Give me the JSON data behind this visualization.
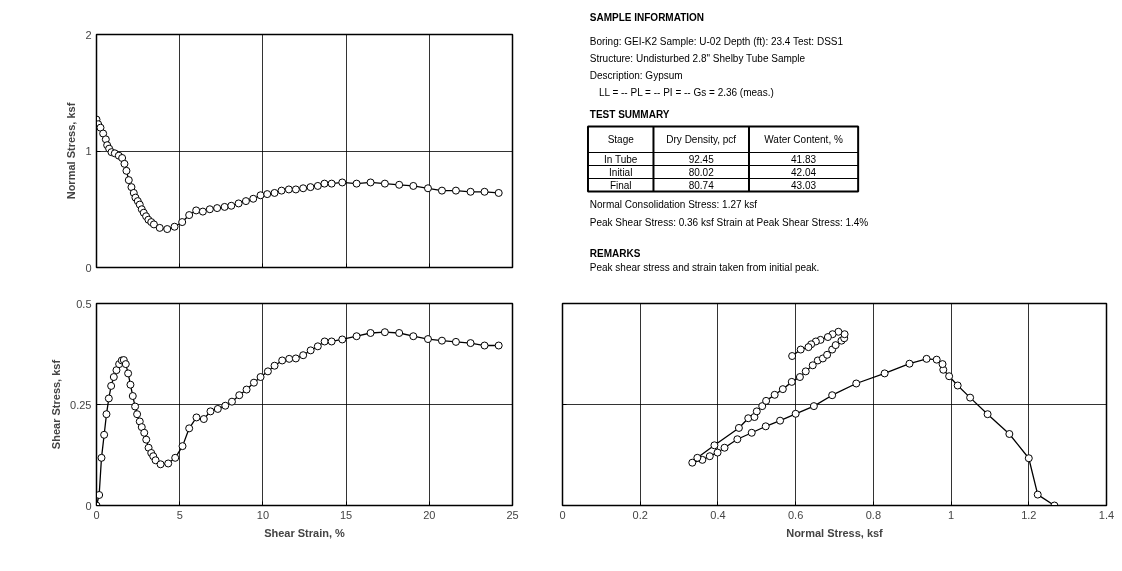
{
  "chart_data": [
    {
      "type": "line",
      "ylabel": "Normal Stress, ksf",
      "xlim": [
        0,
        25
      ],
      "xticks": [
        0,
        5,
        10,
        15,
        20,
        25
      ],
      "ylim": [
        0,
        2
      ],
      "yticks": [
        0,
        1,
        2
      ],
      "tick_labels": "y",
      "grid": true,
      "marker": "circle",
      "line_style": "solid",
      "series": [
        {
          "color": "#000000",
          "x": [
            0,
            0.1,
            0.24,
            0.4,
            0.56,
            0.64,
            0.76,
            0.9,
            1.1,
            1.34,
            1.54,
            1.68,
            1.8,
            1.94,
            2.1,
            2.24,
            2.34,
            2.48,
            2.6,
            2.72,
            2.84,
            2.98,
            3.12,
            3.29,
            3.45,
            3.8,
            4.25,
            4.69,
            5.15,
            5.57,
            5.99,
            6.39,
            6.81,
            7.25,
            7.7,
            8.1,
            8.54,
            8.98,
            9.42,
            9.86,
            10.26,
            10.7,
            11.12,
            11.56,
            11.98,
            12.42,
            12.86,
            13.3,
            13.7,
            14.13,
            14.77,
            15.63,
            16.47,
            17.33,
            18.19,
            19.04,
            19.92,
            20.76,
            21.6,
            22.48,
            23.32,
            24.17
          ],
          "values": [
            1.27,
            1.23,
            1.2,
            1.15,
            1.1,
            1.05,
            1.02,
            0.99,
            0.98,
            0.96,
            0.94,
            0.89,
            0.83,
            0.75,
            0.69,
            0.64,
            0.6,
            0.57,
            0.54,
            0.5,
            0.47,
            0.44,
            0.41,
            0.39,
            0.37,
            0.34,
            0.33,
            0.35,
            0.39,
            0.45,
            0.49,
            0.48,
            0.5,
            0.51,
            0.52,
            0.53,
            0.55,
            0.57,
            0.59,
            0.62,
            0.63,
            0.64,
            0.66,
            0.67,
            0.67,
            0.68,
            0.69,
            0.7,
            0.72,
            0.72,
            0.73,
            0.72,
            0.73,
            0.72,
            0.71,
            0.7,
            0.68,
            0.66,
            0.66,
            0.65,
            0.65,
            0.64
          ]
        }
      ]
    },
    {
      "type": "other",
      "title": "SAMPLE INFORMATION",
      "annotations": [
        "Boring: GEI-K2   Sample: U-02   Depth (ft): 23.4  Test: DSS1",
        "Structure: Undisturbed 2.8\" Shelby Tube Sample",
        "Description: Gypsum",
        "LL = --        PL = --        PI = --      Gs = 2.36  (meas.)",
        "TEST SUMMARY",
        "Normal Consolidation Stress: 1.27 ksf",
        "Peak Shear Stress: 0.36 ksf      Strain at Peak Shear Stress: 1.4%",
        "REMARKS",
        "Peak shear stress and strain taken from initial peak."
      ],
      "categories": [
        "Stage",
        "Dry Density, pcf",
        "Water Content, %"
      ],
      "y_categories": [
        "In Tube",
        "Initial",
        "Final"
      ],
      "cell_labels": [
        [
          "92.45",
          "41.83"
        ],
        [
          "80.02",
          "42.04"
        ],
        [
          "80.74",
          "43.03"
        ]
      ]
    },
    {
      "type": "line",
      "xlabel": "Shear Strain, %",
      "ylabel": "Shear Stress, ksf",
      "xlim": [
        0,
        25
      ],
      "xticks": [
        0,
        5,
        10,
        15,
        20,
        25
      ],
      "ylim": [
        0,
        0.5
      ],
      "yticks": [
        0,
        0.25,
        0.5
      ],
      "grid": true,
      "marker": "circle",
      "line_style": "solid",
      "series": [
        {
          "color": "#000000",
          "x": [
            0,
            0.16,
            0.3,
            0.46,
            0.6,
            0.74,
            0.88,
            1.04,
            1.2,
            1.36,
            1.52,
            1.64,
            1.76,
            1.9,
            2.04,
            2.18,
            2.32,
            2.44,
            2.6,
            2.72,
            2.87,
            2.99,
            3.13,
            3.29,
            3.41,
            3.55,
            3.85,
            4.31,
            4.73,
            5.17,
            5.57,
            6.01,
            6.45,
            6.85,
            7.29,
            7.74,
            8.14,
            8.58,
            9.02,
            9.46,
            9.86,
            10.3,
            10.7,
            11.16,
            11.58,
            11.98,
            12.42,
            12.87,
            13.3,
            13.71,
            14.13,
            14.77,
            15.63,
            16.47,
            17.33,
            18.19,
            19.04,
            19.92,
            20.76,
            21.6,
            22.48,
            23.32,
            24.17
          ],
          "values": [
            0,
            0.026,
            0.118,
            0.175,
            0.226,
            0.265,
            0.296,
            0.318,
            0.335,
            0.35,
            0.359,
            0.36,
            0.35,
            0.327,
            0.299,
            0.271,
            0.245,
            0.226,
            0.208,
            0.194,
            0.18,
            0.163,
            0.143,
            0.13,
            0.122,
            0.112,
            0.102,
            0.104,
            0.118,
            0.147,
            0.191,
            0.218,
            0.214,
            0.233,
            0.239,
            0.247,
            0.257,
            0.273,
            0.287,
            0.304,
            0.318,
            0.332,
            0.346,
            0.359,
            0.363,
            0.364,
            0.372,
            0.384,
            0.394,
            0.406,
            0.406,
            0.411,
            0.419,
            0.427,
            0.429,
            0.427,
            0.419,
            0.412,
            0.408,
            0.405,
            0.402,
            0.396,
            0.396
          ]
        }
      ]
    },
    {
      "type": "line",
      "xlabel": "Normal Stress, ksf",
      "xlim": [
        0,
        1.4
      ],
      "xticks": [
        0,
        0.2,
        0.4,
        0.6,
        0.8,
        1,
        1.2,
        1.4
      ],
      "ylim": [
        0,
        0.5
      ],
      "yticks": [
        0,
        0.25,
        0.5
      ],
      "tick_labels": "x",
      "grid": true,
      "marker": "circle",
      "line_style": "solid",
      "series": [
        {
          "color": "#000000",
          "x": [
            1.266,
            1.223,
            1.2,
            1.15,
            1.094,
            1.049,
            1.017,
            0.995,
            0.98,
            0.978,
            0.963,
            0.937,
            0.893,
            0.829,
            0.756,
            0.694,
            0.647,
            0.6,
            0.56,
            0.523,
            0.487,
            0.45,
            0.417,
            0.399,
            0.379,
            0.36,
            0.334,
            0.347,
            0.391,
            0.454,
            0.478,
            0.494,
            0.5,
            0.514,
            0.524,
            0.546,
            0.567,
            0.59,
            0.611,
            0.626,
            0.644,
            0.657,
            0.67,
            0.681,
            0.694,
            0.703,
            0.718,
            0.725,
            0.726,
            0.71,
            0.695,
            0.683,
            0.664,
            0.652,
            0.64,
            0.633,
            0.613,
            0.591
          ],
          "values": [
            0,
            0.027,
            0.117,
            0.177,
            0.226,
            0.267,
            0.297,
            0.32,
            0.336,
            0.35,
            0.361,
            0.363,
            0.351,
            0.327,
            0.302,
            0.273,
            0.246,
            0.227,
            0.21,
            0.196,
            0.18,
            0.164,
            0.143,
            0.131,
            0.122,
            0.113,
            0.106,
            0.118,
            0.149,
            0.192,
            0.216,
            0.219,
            0.233,
            0.246,
            0.259,
            0.274,
            0.288,
            0.306,
            0.318,
            0.332,
            0.347,
            0.359,
            0.364,
            0.373,
            0.386,
            0.397,
            0.408,
            0.414,
            0.424,
            0.43,
            0.424,
            0.417,
            0.41,
            0.406,
            0.399,
            0.392,
            0.386,
            0.37
          ]
        }
      ]
    }
  ]
}
